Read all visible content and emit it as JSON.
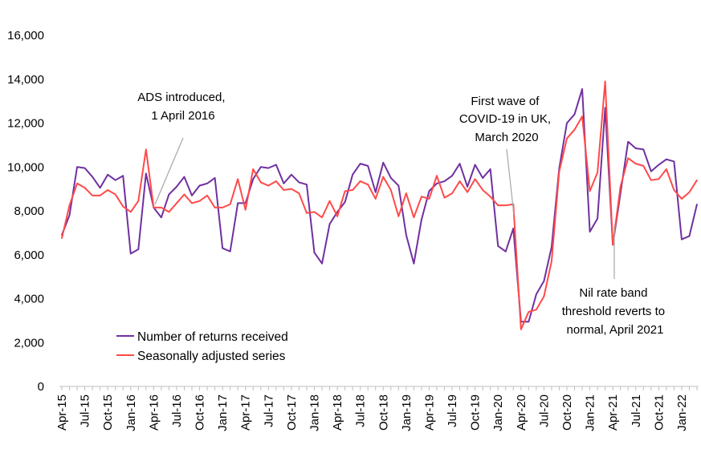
{
  "chart_data": {
    "type": "line",
    "title": "",
    "xlabel": "",
    "ylabel": "",
    "ylim": [
      0,
      16000
    ],
    "yticks": [
      "0",
      "2,000",
      "4,000",
      "6,000",
      "8,000",
      "10,000",
      "12,000",
      "14,000",
      "16,000"
    ],
    "ytick_values": [
      0,
      2000,
      4000,
      6000,
      8000,
      10000,
      12000,
      14000,
      16000
    ],
    "x": [
      "Apr-15",
      "May-15",
      "Jun-15",
      "Jul-15",
      "Aug-15",
      "Sep-15",
      "Oct-15",
      "Nov-15",
      "Dec-15",
      "Jan-16",
      "Feb-16",
      "Mar-16",
      "Apr-16",
      "May-16",
      "Jun-16",
      "Jul-16",
      "Aug-16",
      "Sep-16",
      "Oct-16",
      "Nov-16",
      "Dec-16",
      "Jan-17",
      "Feb-17",
      "Mar-17",
      "Apr-17",
      "May-17",
      "Jun-17",
      "Jul-17",
      "Aug-17",
      "Sep-17",
      "Oct-17",
      "Nov-17",
      "Dec-17",
      "Jan-18",
      "Feb-18",
      "Mar-18",
      "Apr-18",
      "May-18",
      "Jun-18",
      "Jul-18",
      "Aug-18",
      "Sep-18",
      "Oct-18",
      "Nov-18",
      "Dec-18",
      "Jan-19",
      "Feb-19",
      "Mar-19",
      "Apr-19",
      "May-19",
      "Jun-19",
      "Jul-19",
      "Aug-19",
      "Sep-19",
      "Oct-19",
      "Nov-19",
      "Dec-19",
      "Jan-20",
      "Feb-20",
      "Mar-20",
      "Apr-20",
      "May-20",
      "Jun-20",
      "Jul-20",
      "Aug-20",
      "Sep-20",
      "Oct-20",
      "Nov-20",
      "Dec-20",
      "Jan-21",
      "Feb-21",
      "Mar-21",
      "Apr-21",
      "May-21",
      "Jun-21",
      "Jul-21",
      "Aug-21",
      "Sep-21",
      "Oct-21",
      "Nov-21",
      "Dec-21",
      "Jan-22",
      "Feb-22",
      "Mar-22"
    ],
    "xtick_labels": [
      "Apr-15",
      "Jul-15",
      "Oct-15",
      "Jan-16",
      "Apr-16",
      "Jul-16",
      "Oct-16",
      "Jan-17",
      "Apr-17",
      "Jul-17",
      "Oct-17",
      "Jan-18",
      "Apr-18",
      "Jul-18",
      "Oct-18",
      "Jan-19",
      "Apr-19",
      "Jul-19",
      "Oct-19",
      "Jan-20",
      "Apr-20",
      "Jul-20",
      "Oct-20",
      "Jan-21",
      "Apr-21",
      "Jul-21",
      "Oct-21",
      "Jan-22"
    ],
    "series": [
      {
        "name": "Number of returns received",
        "color": "#7030a0",
        "values": [
          6900,
          7800,
          10000,
          9950,
          9550,
          9050,
          9650,
          9400,
          9600,
          6050,
          6250,
          9700,
          8150,
          7700,
          8750,
          9100,
          9550,
          8700,
          9150,
          9250,
          9500,
          6300,
          6150,
          8350,
          8350,
          9450,
          10000,
          9950,
          10100,
          9250,
          9650,
          9300,
          9200,
          6100,
          5600,
          7400,
          7950,
          8400,
          9650,
          10150,
          10050,
          8850,
          10200,
          9500,
          9150,
          6900,
          5600,
          7600,
          8900,
          9250,
          9350,
          9600,
          10150,
          9100,
          10100,
          9500,
          9900,
          6400,
          6150,
          7200,
          2950,
          2950,
          4200,
          4800,
          6350,
          9950,
          12000,
          12400,
          13550,
          7050,
          7650,
          12700,
          6450,
          8800,
          11150,
          10850,
          10800,
          9800,
          10100,
          10350,
          10250,
          6700,
          6850,
          8300
        ]
      },
      {
        "name": "Seasonally adjusted series",
        "color": "#ff4a4a",
        "values": [
          6750,
          8250,
          9250,
          9050,
          8700,
          8700,
          8950,
          8750,
          8200,
          7950,
          8450,
          10800,
          8150,
          8150,
          7950,
          8350,
          8750,
          8350,
          8450,
          8700,
          8150,
          8150,
          8300,
          9450,
          8050,
          9900,
          9300,
          9150,
          9350,
          8950,
          9000,
          8800,
          7900,
          7950,
          7700,
          8450,
          7750,
          8900,
          8950,
          9350,
          9200,
          8550,
          9550,
          8950,
          7750,
          8800,
          7700,
          8650,
          8550,
          9600,
          8600,
          8800,
          9350,
          8850,
          9450,
          8950,
          8650,
          8250,
          8250,
          8300,
          2600,
          3400,
          3500,
          4100,
          5700,
          9800,
          11300,
          11700,
          12300,
          8900,
          9750,
          13900,
          6450,
          9100,
          10400,
          10150,
          10050,
          9400,
          9450,
          9900,
          8950,
          8550,
          8850,
          9400
        ]
      }
    ],
    "legend": {
      "placement": "bottom-left"
    },
    "grid": false,
    "annotations": [
      {
        "lines": [
          "ADS introduced,",
          "1 April 2016"
        ],
        "points_to": "Apr-16"
      },
      {
        "lines": [
          "First wave of",
          "COVID-19 in UK,",
          "March 2020"
        ],
        "points_to": "Mar-20"
      },
      {
        "lines": [
          "Nil rate band",
          "threshold reverts to",
          "normal, April 2021"
        ],
        "points_to": "Apr-21"
      }
    ]
  }
}
